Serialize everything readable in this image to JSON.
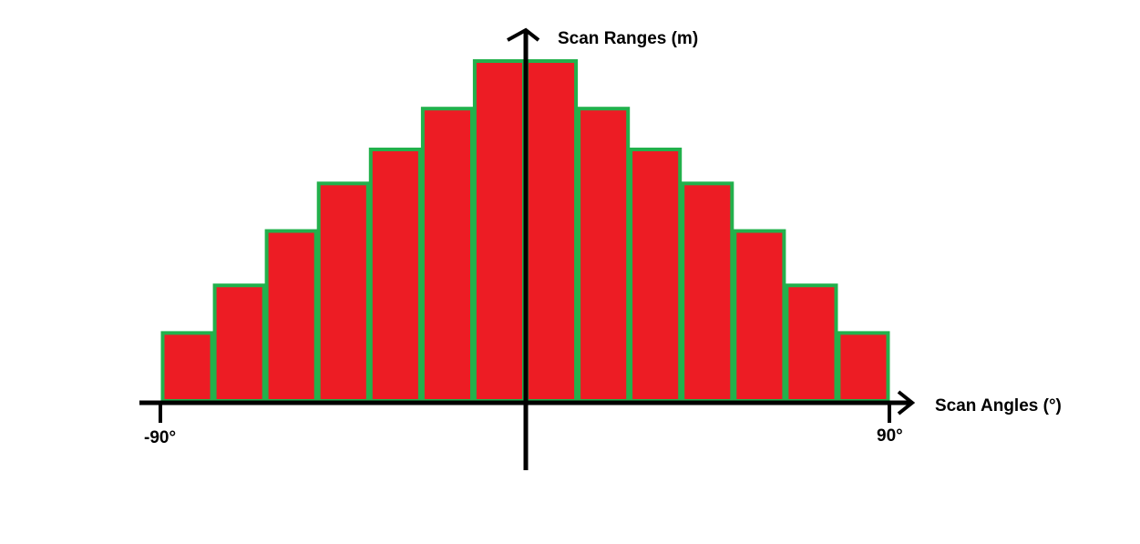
{
  "chart_data": {
    "type": "bar",
    "xlabel": "Scan Angles (°)",
    "ylabel": "Scan Ranges (m)",
    "x_tick_labels": [
      "-90°",
      "90°"
    ],
    "xlim": [
      -90,
      90
    ],
    "values": [
      1.0,
      1.7,
      2.5,
      3.2,
      3.7,
      4.3,
      5.0,
      5.0,
      4.3,
      3.7,
      3.2,
      2.5,
      1.7,
      1.0
    ],
    "grid": false,
    "legend": "none",
    "colors": {
      "bar_fill": "#ed1c24",
      "bar_edge": "#22b14c",
      "axis": "#000000"
    }
  }
}
